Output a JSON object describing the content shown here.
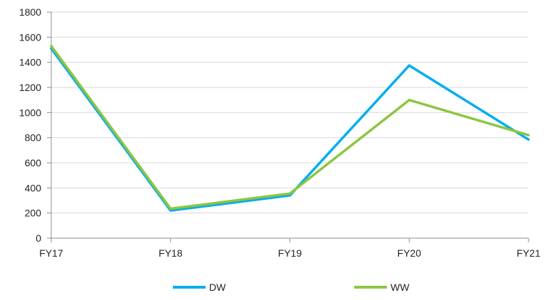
{
  "chart_data": {
    "type": "line",
    "categories": [
      "FY17",
      "FY18",
      "FY19",
      "FY20",
      "FY21"
    ],
    "series": [
      {
        "name": "DW",
        "color": "#00aeef",
        "values": [
          1510,
          220,
          340,
          1375,
          785
        ]
      },
      {
        "name": "WW",
        "color": "#8dc63f",
        "values": [
          1530,
          235,
          355,
          1100,
          820
        ]
      }
    ],
    "yticks": [
      "0",
      "200",
      "400",
      "600",
      "800",
      "1000",
      "1200",
      "1400",
      "1600",
      "1800"
    ],
    "ylim": [
      0,
      1800
    ],
    "grid": true,
    "legend_position": "bottom"
  }
}
